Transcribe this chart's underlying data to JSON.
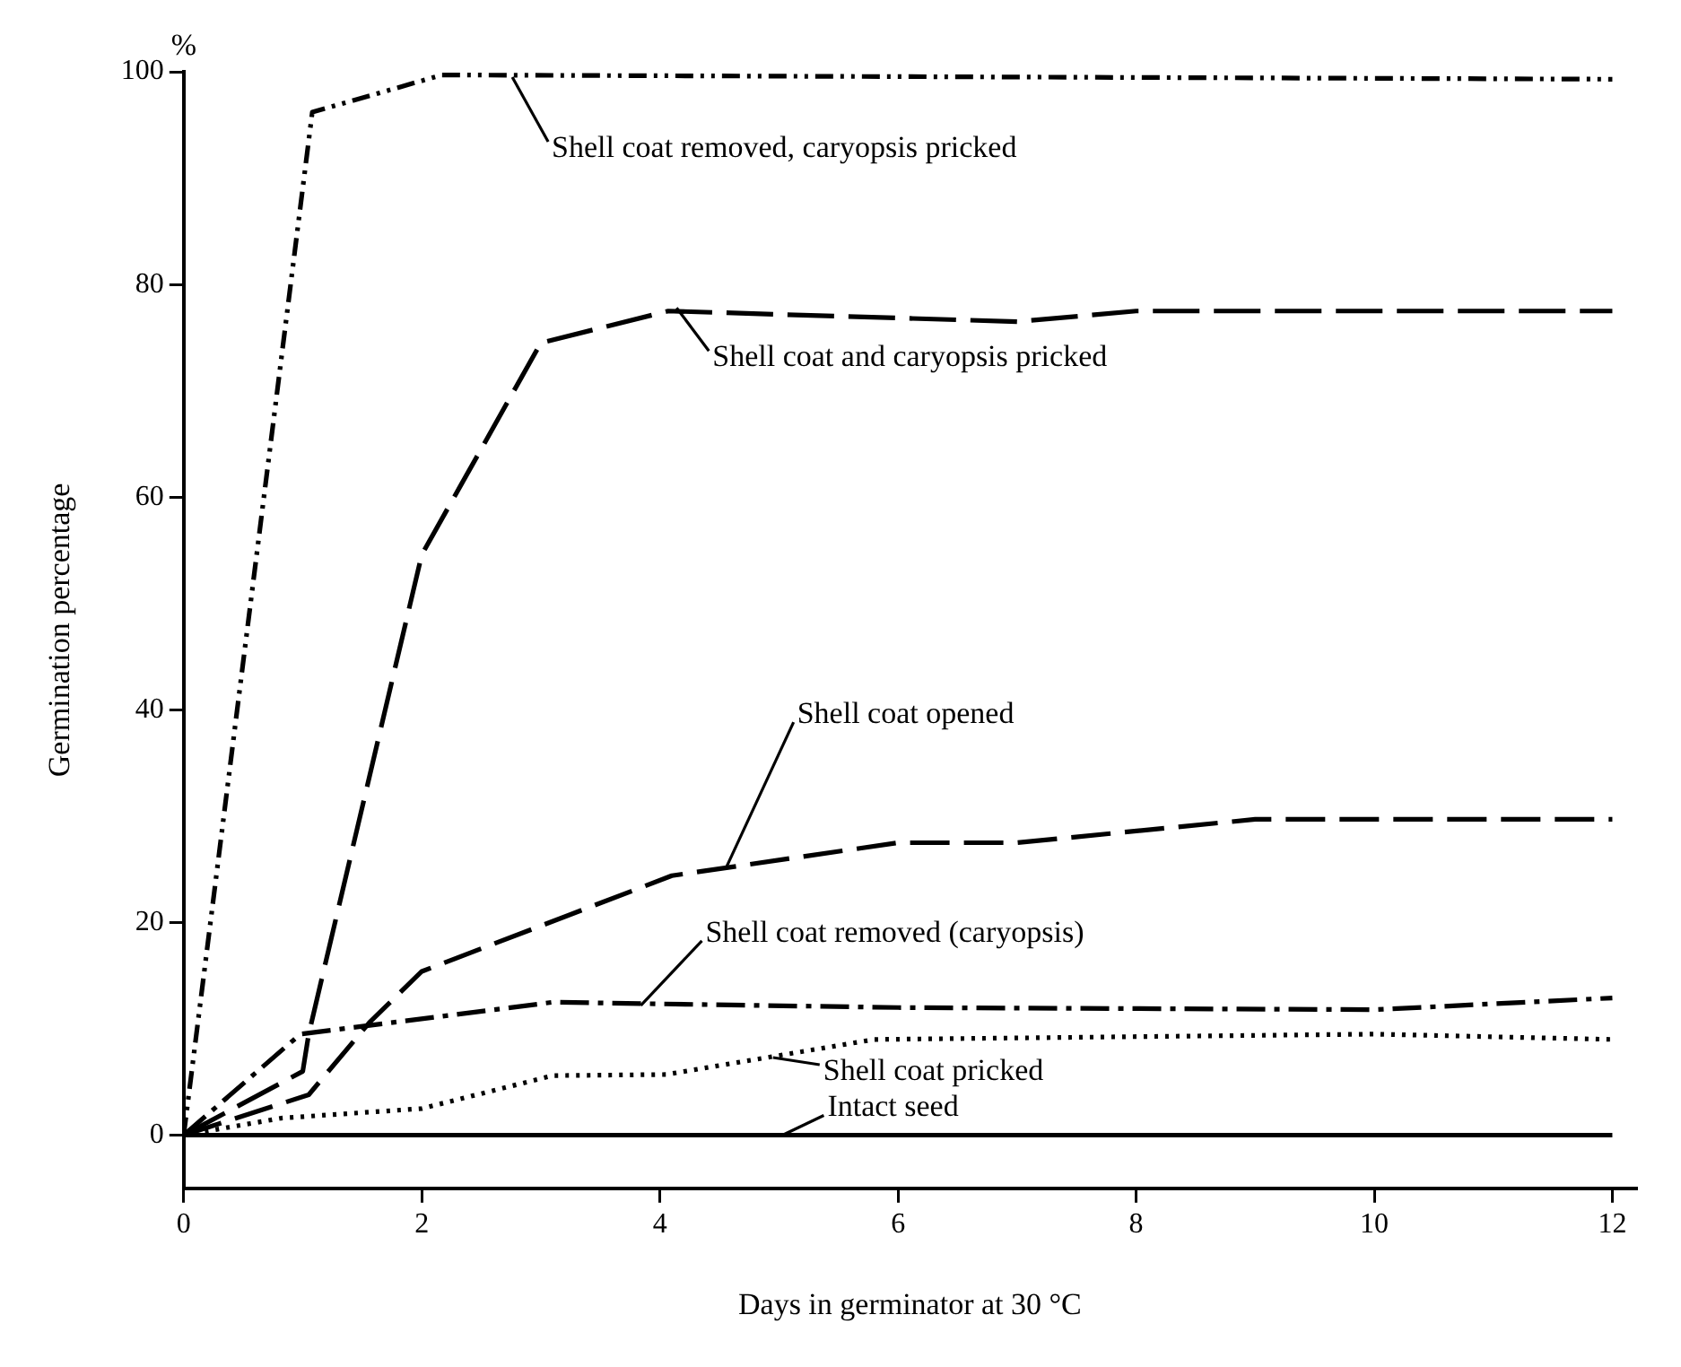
{
  "chart_data": {
    "type": "line",
    "xlabel": "Days in germinator at 30 °C",
    "ylabel": "Germination percentage",
    "xlim": [
      0,
      12.2
    ],
    "xticks": [
      0,
      2,
      4,
      6,
      8,
      10,
      12
    ],
    "ylim": [
      -5,
      100
    ],
    "yticks": [
      0,
      20,
      40,
      60,
      80,
      100
    ],
    "grid": false,
    "legend": false,
    "marker": "none",
    "series": [
      {
        "color": "#000000",
        "line_style": "dashed",
        "x": [
          0,
          1.08,
          2.17,
          12
        ],
        "values": [
          0,
          96.2,
          99.7,
          99.3
        ]
      },
      {
        "color": "#000000",
        "line_style": "dashed",
        "x": [
          0,
          1,
          1.05,
          2,
          3,
          4.07,
          7,
          8,
          12
        ],
        "values": [
          0,
          6,
          9.5,
          54.6,
          74.5,
          77.5,
          76.5,
          77.5,
          77.5
        ]
      },
      {
        "color": "#000000",
        "line_style": "dashed",
        "x": [
          0,
          1.05,
          1.56,
          2,
          4.1,
          6,
          7,
          9,
          12
        ],
        "values": [
          0,
          3.8,
          10.6,
          15.4,
          24.4,
          27.5,
          27.5,
          29.7,
          29.7
        ]
      },
      {
        "color": "#000000",
        "line_style": "dashed",
        "x": [
          0,
          0.98,
          3.1,
          6,
          10,
          12
        ],
        "values": [
          0,
          9.5,
          12.5,
          12,
          11.8,
          12.9
        ]
      },
      {
        "color": "#000000",
        "line_style": "dotted",
        "x": [
          0,
          0.82,
          2,
          3.1,
          4.05,
          5.8,
          10,
          12
        ],
        "values": [
          0,
          1.6,
          2.5,
          5.6,
          5.7,
          9,
          9.5,
          9
        ]
      },
      {
        "color": "#000000",
        "line_style": "solid",
        "x": [
          0,
          12
        ],
        "values": [
          0,
          0
        ]
      }
    ],
    "annotations": [
      "%",
      {
        "text": "Shell coat removed, caryopsis pricked",
        "x": 2.76,
        "y": 99.5
      },
      {
        "text": "Shell coat and caryopsis pricked",
        "x": 4.14,
        "y": 77.8
      },
      {
        "text": "Shell coat opened",
        "x": 4.55,
        "y": 25
      },
      {
        "text": "Shell coat removed (caryopsis)",
        "x": 3.84,
        "y": 12.2
      },
      {
        "text": "Shell coat pricked",
        "x": 4.95,
        "y": 7.3
      },
      {
        "text": "Intact seed",
        "x": 5.03,
        "y": 0
      }
    ]
  }
}
